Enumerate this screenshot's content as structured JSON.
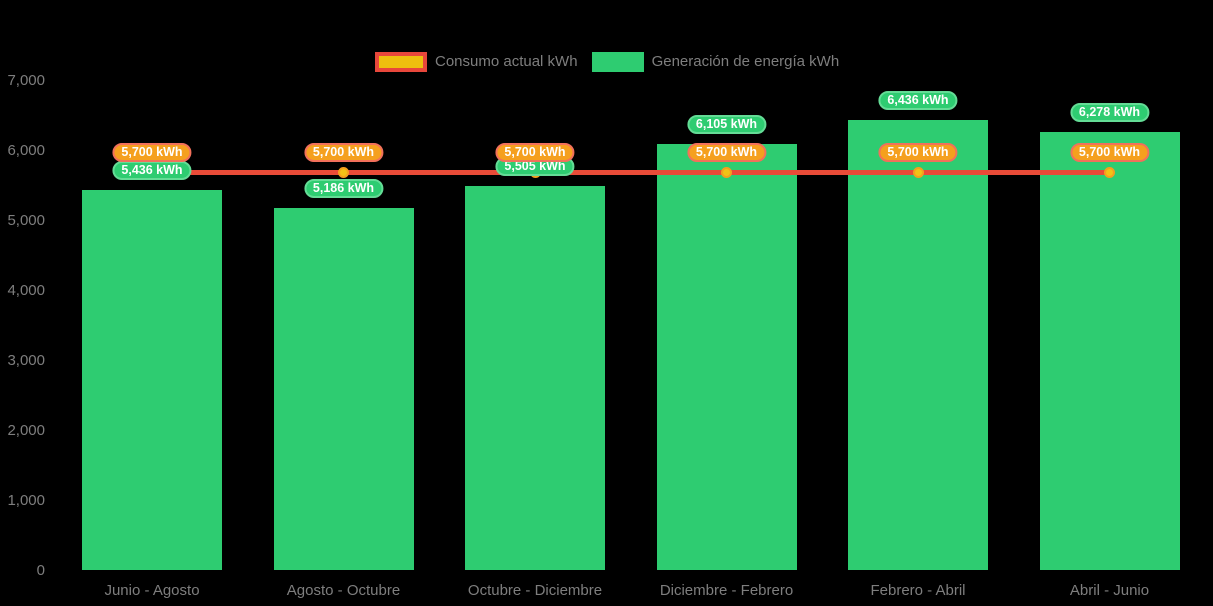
{
  "colors": {
    "background": "#000000",
    "axis_text": "#7e7e7e",
    "bar_green": "#2ecc71",
    "green_pill_fill": "#2ecc71",
    "green_pill_border": "#64dc96",
    "orange_pill_fill": "#f5a01e",
    "orange_pill_border": "#f2705b",
    "line_red": "#e94b38",
    "dot_fill": "#f3c216",
    "dot_border": "#f5a01e",
    "legend_swatch_gold": "#eec00e",
    "legend_swatch_red_border": "#e8473b"
  },
  "legend": {
    "items": [
      {
        "label": "Consumo actual kWh",
        "swatch_fill": "#eec00e",
        "swatch_border": "#e8473b"
      },
      {
        "label": "Generación de energía kWh",
        "swatch_fill": "#2ecc71",
        "swatch_border": "#2ecc71"
      }
    ]
  },
  "chart_data": {
    "type": "bar",
    "title": "",
    "xlabel": "",
    "ylabel": "",
    "categories": [
      "Junio - Agosto",
      "Agosto - Octubre",
      "Octubre - Diciembre",
      "Diciembre - Febrero",
      "Febrero - Abril",
      "Abril - Junio"
    ],
    "series": [
      {
        "name": "Generación de energía kWh",
        "type": "bar",
        "color": "#2ecc71",
        "values": [
          5436,
          5186,
          5505,
          6105,
          6436,
          6278
        ],
        "data_labels": [
          "5,436 kWh",
          "5,186 kWh",
          "5,505 kWh",
          "6,105 kWh",
          "6,436 kWh",
          "6,278 kWh"
        ]
      },
      {
        "name": "Consumo actual kWh",
        "type": "line",
        "color": "#e94b38",
        "marker_fill": "#f3c216",
        "marker_border": "#f5a01e",
        "values": [
          5700,
          5700,
          5700,
          5700,
          5700,
          5700
        ],
        "data_labels": [
          "5,700 kWh",
          "5,700 kWh",
          "5,700 kWh",
          "5,700 kWh",
          "5,700 kWh",
          "5,700 kWh"
        ]
      }
    ],
    "ylim": [
      0,
      7000
    ],
    "ytick_step": 1000,
    "ytick_labels": [
      "0",
      "1,000",
      "2,000",
      "3,000",
      "4,000",
      "5,000",
      "6,000",
      "7,000"
    ],
    "grid": false,
    "legend_position": "top"
  }
}
